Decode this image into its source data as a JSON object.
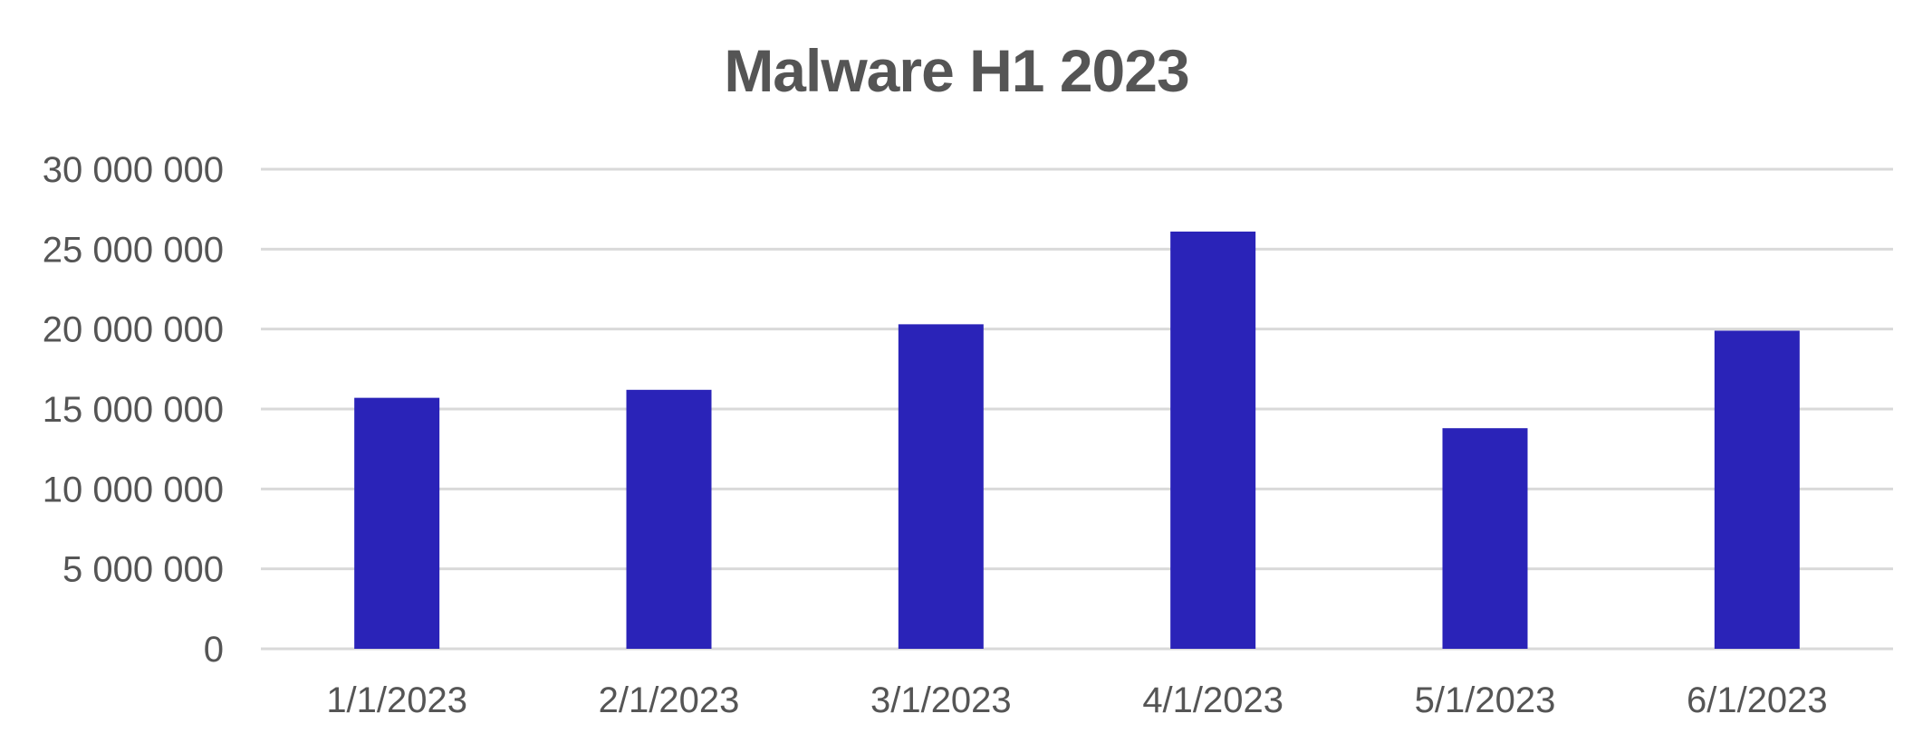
{
  "chart_data": {
    "type": "bar",
    "title": "Malware H1 2023",
    "xlabel": "",
    "ylabel": "",
    "categories": [
      "1/1/2023",
      "2/1/2023",
      "3/1/2023",
      "4/1/2023",
      "5/1/2023",
      "6/1/2023"
    ],
    "series": [
      {
        "values": [
          15700000,
          16200000,
          20300000,
          26100000,
          13800000,
          19900000
        ]
      }
    ],
    "ylim": [
      0,
      30000000
    ],
    "yticks": [
      0,
      5000000,
      10000000,
      15000000,
      20000000,
      25000000,
      30000000
    ],
    "ytick_labels": [
      "0",
      "5 000 000",
      "10 000 000",
      "15 000 000",
      "20 000 000",
      "25 000 000",
      "30 000 000"
    ],
    "grid": true,
    "legend": "none",
    "colors": {
      "bar": "#2a23b8",
      "grid": "#d9d9d9",
      "text": "#555555"
    }
  }
}
